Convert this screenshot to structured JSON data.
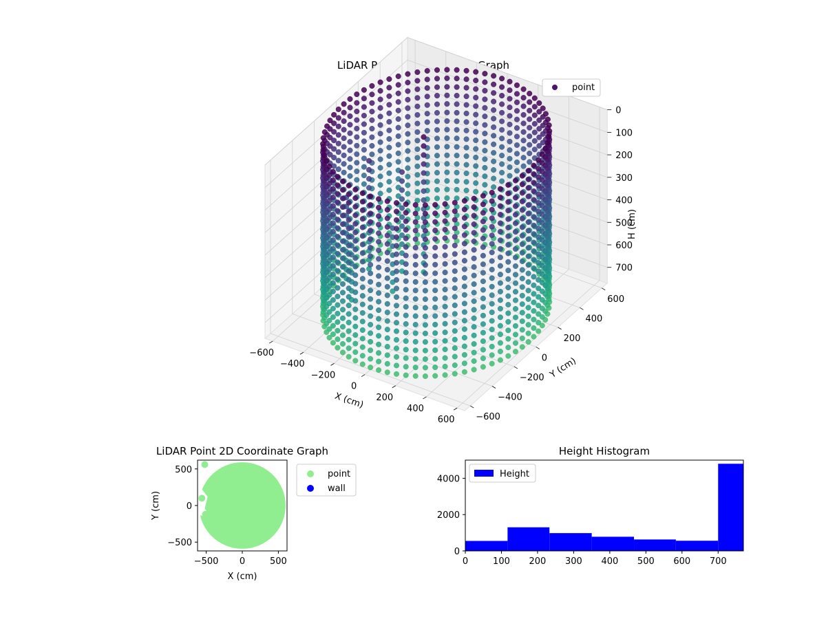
{
  "figure": {
    "background": "#ffffff"
  },
  "chart_data": [
    {
      "type": "scatter3d",
      "title": "LiDAR Point 3D Coordinate Graph",
      "xlabel": "X (cm)",
      "ylabel": "Y (cm)",
      "zlabel": "H (cm)",
      "xlim": [
        -650,
        650
      ],
      "ylim": [
        -650,
        650
      ],
      "zlim": [
        0,
        770
      ],
      "z_inverted": true,
      "xticks": [
        -600,
        -400,
        -200,
        0,
        200,
        400,
        600
      ],
      "yticks": [
        -600,
        -400,
        -200,
        0,
        200,
        400,
        600
      ],
      "zticks": [
        0,
        100,
        200,
        300,
        400,
        500,
        600,
        700
      ],
      "colormap": "viridis",
      "legend": {
        "entries": [
          "point"
        ],
        "placement": "top-right"
      },
      "series": [
        {
          "name": "point",
          "color": "#46176a",
          "description_shape": "cylindrical wall",
          "wall_radius": 600,
          "height_range": [
            0,
            770
          ],
          "obstacle_region": {
            "x_range": [
              -600,
              -100
            ],
            "y_range": [
              -600,
              -100
            ]
          }
        }
      ],
      "grid": true
    },
    {
      "type": "scatter",
      "title": "LiDAR Point 2D Coordinate Graph",
      "xlabel": "X (cm)",
      "ylabel": "Y (cm)",
      "xlim": [
        -620,
        620
      ],
      "ylim": [
        -620,
        620
      ],
      "xticks": [
        -500,
        0,
        500
      ],
      "yticks": [
        -500,
        0,
        500
      ],
      "legend": {
        "entries": [
          "point",
          "wall"
        ],
        "placement": "outside-right"
      },
      "series": [
        {
          "name": "point",
          "color": "#90ee90",
          "shape": "filled disk",
          "radius": 600
        },
        {
          "name": "wall",
          "color": "#0000ff",
          "points": []
        }
      ],
      "grid": false
    },
    {
      "type": "bar",
      "title": "Height Histogram",
      "xlabel": "",
      "ylabel": "",
      "xlim": [
        0,
        770
      ],
      "ylim": [
        0,
        5000
      ],
      "xticks": [
        0,
        100,
        200,
        300,
        400,
        500,
        600,
        700
      ],
      "yticks": [
        0,
        2000,
        4000
      ],
      "bin_edges": [
        0,
        117,
        233,
        350,
        467,
        583,
        700,
        770
      ],
      "values": [
        550,
        1300,
        980,
        780,
        630,
        560,
        4800
      ],
      "legend": {
        "entries": [
          "Height"
        ],
        "placement": "top-left"
      },
      "series": [
        {
          "name": "Height",
          "color": "#0000ff"
        }
      ],
      "grid": false
    }
  ]
}
